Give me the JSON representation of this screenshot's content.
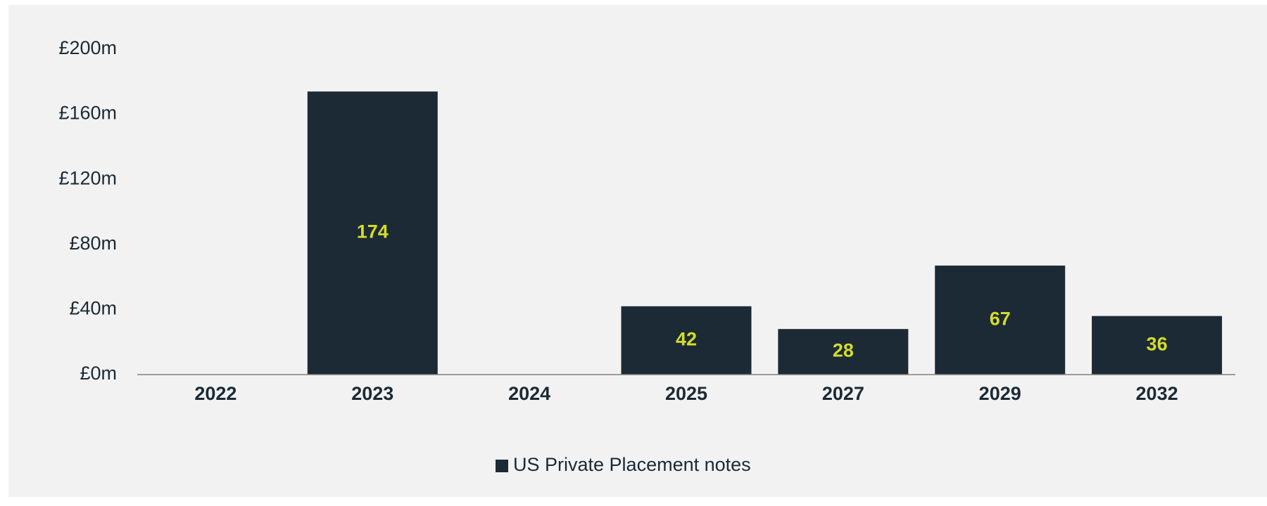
{
  "chart_data": {
    "type": "bar",
    "categories": [
      "2022",
      "2023",
      "2024",
      "2025",
      "2027",
      "2029",
      "2032"
    ],
    "series": [
      {
        "name": "US Private Placement notes",
        "color": "#1c2a35",
        "label_color": "#d4dc2a",
        "values": [
          null,
          174,
          null,
          42,
          28,
          67,
          36
        ]
      }
    ],
    "ylim": [
      0,
      200
    ],
    "yticks": [
      {
        "value": 0,
        "label": "£0m"
      },
      {
        "value": 40,
        "label": "£40m"
      },
      {
        "value": 80,
        "label": "£80m"
      },
      {
        "value": 120,
        "label": "£120m"
      },
      {
        "value": 160,
        "label": "£160m"
      },
      {
        "value": 200,
        "label": "£200m"
      }
    ],
    "grid": false,
    "legend": "bottom"
  }
}
